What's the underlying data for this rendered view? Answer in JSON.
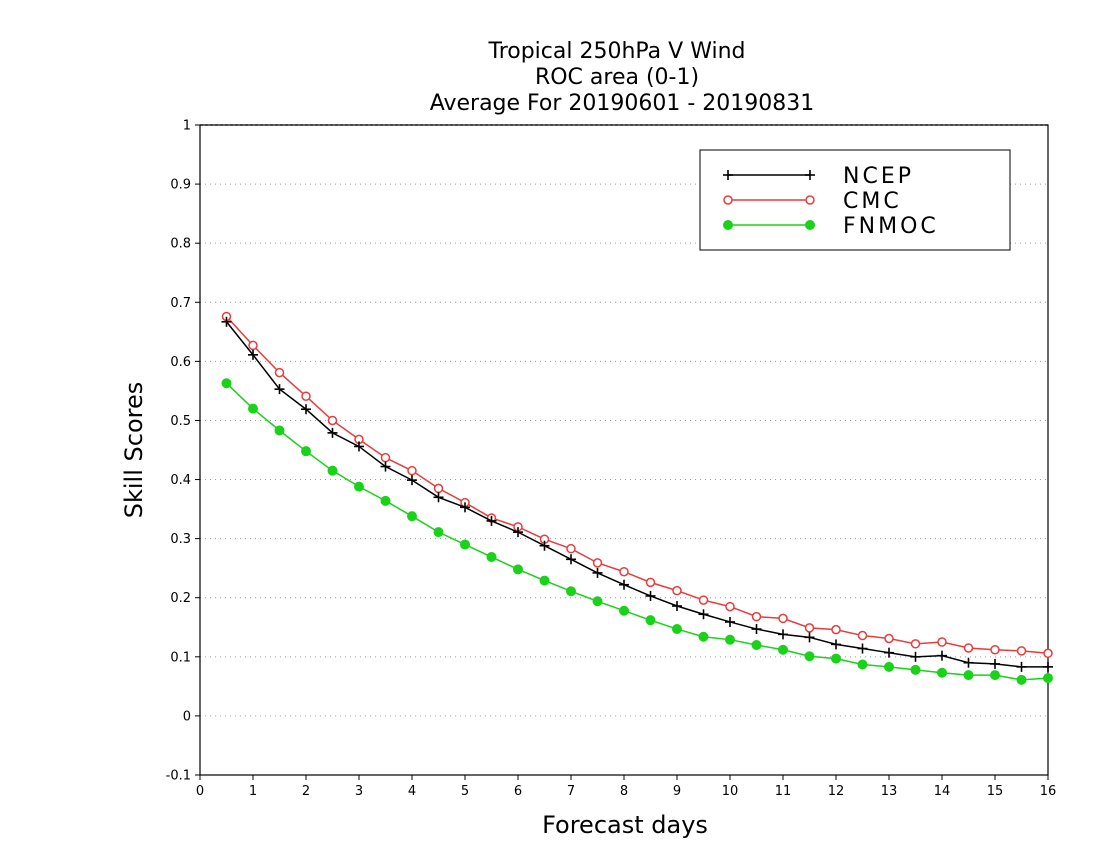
{
  "chart_data": {
    "type": "line",
    "title": [
      "Tropical 250hPa V Wind",
      "ROC area (0-1)",
      "Average For 20190601 - 20190831"
    ],
    "xlabel": "Forecast days",
    "ylabel": "Skill Scores",
    "xlim": [
      0,
      16
    ],
    "ylim": [
      -0.1,
      1
    ],
    "xticks": [
      "0",
      "1",
      "2",
      "3",
      "4",
      "5",
      "6",
      "7",
      "8",
      "9",
      "10",
      "11",
      "12",
      "13",
      "14",
      "15",
      "16"
    ],
    "yticks": [
      "-0.1",
      "0",
      "0.1",
      "0.2",
      "0.3",
      "0.4",
      "0.5",
      "0.6",
      "0.7",
      "0.8",
      "0.9",
      "1"
    ],
    "grid": "horizontal dotted",
    "legend_position": "top-right",
    "x": [
      0.5,
      1,
      1.5,
      2,
      2.5,
      3,
      3.5,
      4,
      4.5,
      5,
      5.5,
      6,
      6.5,
      7,
      7.5,
      8,
      8.5,
      9,
      9.5,
      10,
      10.5,
      11,
      11.5,
      12,
      12.5,
      13,
      13.5,
      14,
      14.5,
      15,
      15.5,
      16
    ],
    "series": [
      {
        "name": "NCEP",
        "color": "#000000",
        "marker": "plus",
        "values": [
          0.667,
          0.611,
          0.553,
          0.519,
          0.479,
          0.456,
          0.422,
          0.399,
          0.37,
          0.353,
          0.33,
          0.311,
          0.288,
          0.265,
          0.242,
          0.222,
          0.203,
          0.186,
          0.172,
          0.159,
          0.147,
          0.138,
          0.133,
          0.121,
          0.114,
          0.107,
          0.1,
          0.102,
          0.09,
          0.088,
          0.083,
          0.083
        ]
      },
      {
        "name": "CMC",
        "color": "#e83c3c",
        "marker": "open-circle",
        "values": [
          0.676,
          0.627,
          0.581,
          0.541,
          0.5,
          0.468,
          0.437,
          0.415,
          0.385,
          0.361,
          0.335,
          0.32,
          0.299,
          0.283,
          0.259,
          0.244,
          0.226,
          0.212,
          0.196,
          0.185,
          0.168,
          0.165,
          0.149,
          0.146,
          0.136,
          0.131,
          0.122,
          0.125,
          0.115,
          0.112,
          0.11,
          0.106
        ]
      },
      {
        "name": "FNMOC",
        "color": "#19d219",
        "marker": "filled-circle",
        "values": [
          0.563,
          0.52,
          0.483,
          0.448,
          0.415,
          0.388,
          0.364,
          0.338,
          0.311,
          0.29,
          0.269,
          0.248,
          0.229,
          0.211,
          0.194,
          0.178,
          0.162,
          0.147,
          0.134,
          0.129,
          0.12,
          0.112,
          0.101,
          0.097,
          0.087,
          0.083,
          0.078,
          0.073,
          0.069,
          0.069,
          0.061,
          0.064
        ]
      }
    ]
  }
}
